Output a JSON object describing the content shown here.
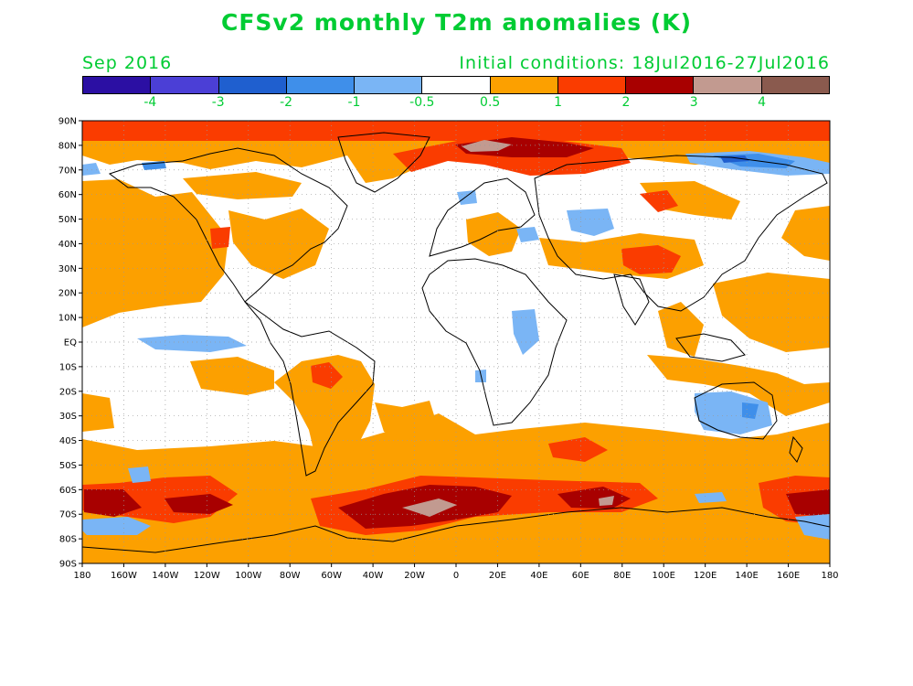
{
  "header": {
    "title": "CFSv2 monthly T2m anomalies (K)",
    "valid_month": "Sep 2016",
    "initial_conditions": "Initial conditions: 18Jul2016-27Jul2016"
  },
  "colorbar": {
    "colors": [
      "#2b0fa3",
      "#4b3fd6",
      "#1f5fcf",
      "#3f8fea",
      "#7ab5f5",
      "#ffffff",
      "#fca000",
      "#fa3c00",
      "#a80000",
      "#c29a90",
      "#8a5a4e"
    ],
    "labels": [
      "-4",
      "-3",
      "-2",
      "-1",
      "-0.5",
      "0.5",
      "1",
      "2",
      "3",
      "4"
    ]
  },
  "axes": {
    "lat_labels": [
      "90N",
      "80N",
      "70N",
      "60N",
      "50N",
      "40N",
      "30N",
      "20N",
      "10N",
      "EQ",
      "10S",
      "20S",
      "30S",
      "40S",
      "50S",
      "60S",
      "70S",
      "80S",
      "90S"
    ],
    "lon_labels": [
      "180",
      "160W",
      "140W",
      "120W",
      "100W",
      "80W",
      "60W",
      "40W",
      "20W",
      "0",
      "20E",
      "40E",
      "60E",
      "80E",
      "100E",
      "120E",
      "140E",
      "160E",
      "180"
    ]
  },
  "map_colors": {
    "background": "#ffffff",
    "level_0p5": "#fca000",
    "level_1": "#fa3c00",
    "level_2": "#a80000",
    "level_3": "#c29a90",
    "neg_0p5": "#7ab5f5",
    "neg_1": "#3f8fea",
    "neg_2": "#1f5fcf",
    "coast": "#000000",
    "grid": "#9a9a9a"
  }
}
